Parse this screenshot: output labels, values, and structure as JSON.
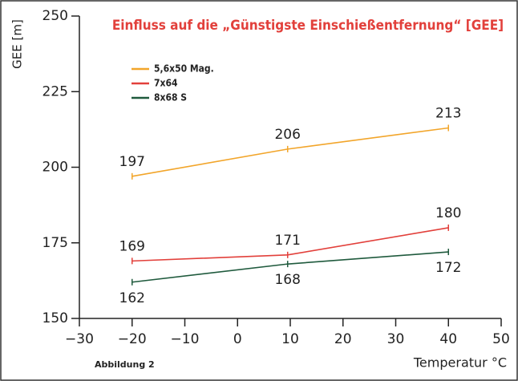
{
  "chart_data": {
    "type": "line",
    "title": "Einfluss auf die „Günstigste Einschießentfernung“ [GEE]",
    "ylabel": "GEE [m]",
    "xlabel": "Temperatur °C",
    "footnote": "Abbildung 2",
    "x": [
      -20,
      9.5,
      40
    ],
    "series": [
      {
        "name": "5,6x50 Mag.",
        "color": "#f2a52a",
        "values": [
          197,
          206,
          213
        ]
      },
      {
        "name": "7x64",
        "color": "#e2403b",
        "values": [
          169,
          171,
          180
        ]
      },
      {
        "name": "8x68 S",
        "color": "#1f5a3d",
        "values": [
          162,
          168,
          172
        ]
      }
    ],
    "xlim": [
      -30,
      50
    ],
    "xticks": [
      {
        "value": -30,
        "label": "−30"
      },
      {
        "value": -20,
        "label": "−20"
      },
      {
        "value": -10,
        "label": "−10"
      },
      0,
      10,
      20,
      30,
      40,
      50
    ],
    "ylim": [
      150,
      250
    ],
    "yticks": [
      150,
      175,
      200,
      225,
      250
    ],
    "legend": "top-left"
  }
}
